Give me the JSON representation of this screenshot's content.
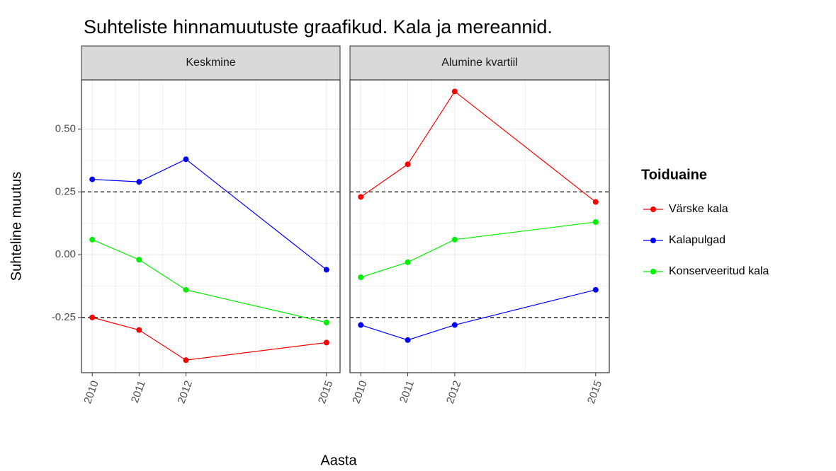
{
  "chart_data": {
    "type": "line",
    "title": "Suhteliste hinnamuutuste graafikud. Kala ja mereannid.",
    "x_label": "Aasta",
    "y_label": "Suhteline muutus",
    "legend_title": "Toiduaine",
    "x": [
      2010,
      2011,
      2012,
      2015
    ],
    "xlim": [
      2009.77,
      2015.29
    ],
    "xticks": [
      2010,
      2011,
      2012,
      2015
    ],
    "ylim": [
      -0.47,
      0.696
    ],
    "yticks": [
      {
        "value": -0.25,
        "label": "-0.25"
      },
      {
        "value": 0,
        "label": "0.00"
      },
      {
        "value": 0.25,
        "label": "0.25"
      },
      {
        "value": 0.5,
        "label": "0.50"
      }
    ],
    "hlines": [
      0.25,
      -0.25
    ],
    "grid": true,
    "series": [
      {
        "name": "Värske kala",
        "color": "#ff0000"
      },
      {
        "name": "Kalapulgad",
        "color": "#0000ff"
      },
      {
        "name": "Konserveeritud kala",
        "color": "#00ee00"
      }
    ],
    "facets": [
      {
        "title": "Keskmine",
        "values": [
          [
            -0.25,
            -0.3,
            -0.42,
            -0.35
          ],
          [
            0.3,
            0.29,
            0.38,
            -0.06
          ],
          [
            0.06,
            -0.02,
            -0.14,
            -0.27
          ]
        ]
      },
      {
        "title": "Alumine kvartiil",
        "values": [
          [
            0.23,
            0.36,
            0.65,
            0.21
          ],
          [
            -0.28,
            -0.34,
            -0.28,
            -0.14
          ],
          [
            -0.09,
            -0.03,
            0.06,
            0.13
          ]
        ]
      }
    ]
  }
}
